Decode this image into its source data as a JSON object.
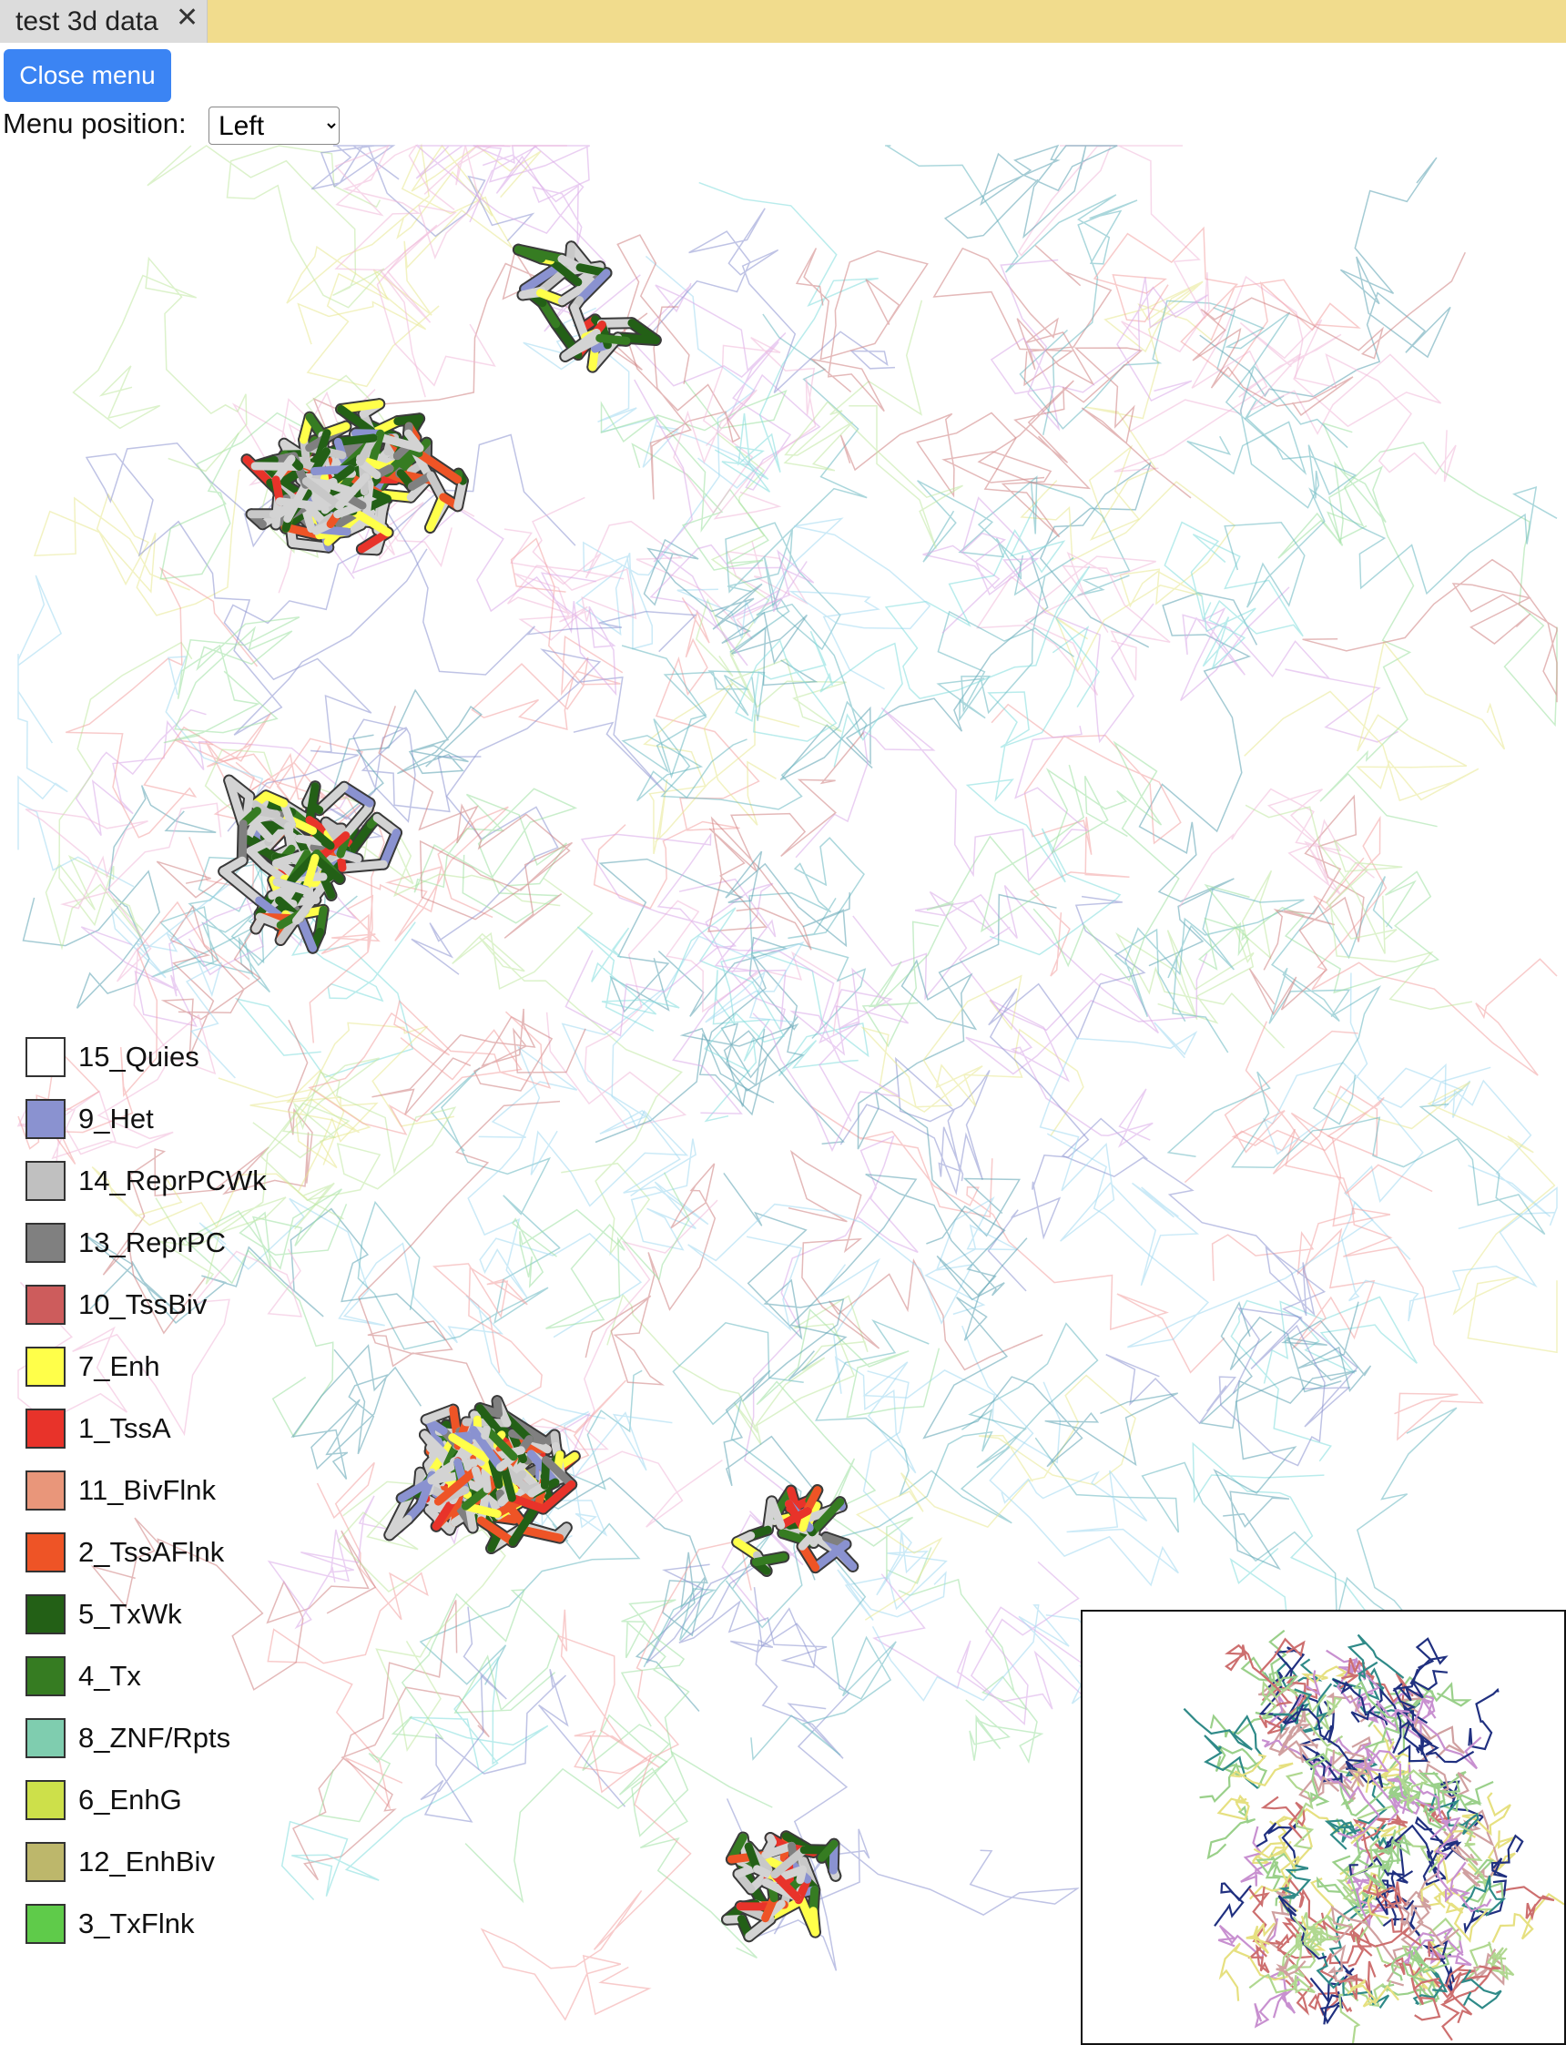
{
  "tab": {
    "title": "test 3d data",
    "close_glyph": "✕"
  },
  "toolbar": {
    "close_menu_label": "Close menu"
  },
  "menu_position": {
    "label": "Menu position:",
    "selected": "Left",
    "options": [
      "Left"
    ]
  },
  "legend": [
    {
      "label": "15_Quies",
      "color": "#ffffff"
    },
    {
      "label": "9_Het",
      "color": "#8a92d0"
    },
    {
      "label": "14_ReprPCWk",
      "color": "#c0c0c0"
    },
    {
      "label": "13_ReprPC",
      "color": "#808080"
    },
    {
      "label": "10_TssBiv",
      "color": "#cd5c5c"
    },
    {
      "label": "7_Enh",
      "color": "#ffff4a"
    },
    {
      "label": "1_TssA",
      "color": "#e8332a"
    },
    {
      "label": "11_BivFlnk",
      "color": "#e9967a"
    },
    {
      "label": "2_TssAFlnk",
      "color": "#ee5426"
    },
    {
      "label": "5_TxWk",
      "color": "#236016"
    },
    {
      "label": "4_Tx",
      "color": "#367c22"
    },
    {
      "label": "8_ZNF/Rpts",
      "color": "#7fcdaf"
    },
    {
      "label": "6_EnhG",
      "color": "#cde04a"
    },
    {
      "label": "12_EnhBiv",
      "color": "#bdb76b"
    },
    {
      "label": "3_TxFlnk",
      "color": "#5fcb4a"
    }
  ]
}
